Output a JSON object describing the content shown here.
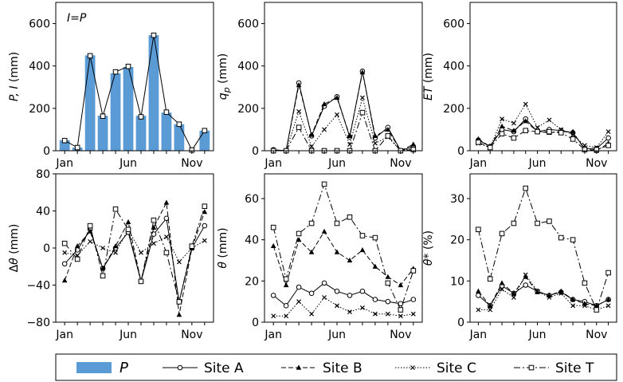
{
  "chart_data": [
    {
      "type": "bar",
      "title": "",
      "annotation": "I=P",
      "ylabel": "P, I (mm)",
      "xlabel": "",
      "months": [
        1,
        2,
        3,
        4,
        5,
        6,
        7,
        8,
        9,
        10,
        11,
        12
      ],
      "xtick_labels": [
        "Jan",
        "Jun",
        "Nov"
      ],
      "ylim": [
        0,
        700
      ],
      "yticks": [
        0,
        200,
        400,
        600
      ],
      "bars": {
        "name": "P",
        "values": [
          50,
          15,
          450,
          165,
          365,
          395,
          165,
          545,
          180,
          125,
          0,
          95
        ]
      },
      "series": [
        {
          "name": "I",
          "values": [
            48,
            15,
            448,
            163,
            372,
            398,
            160,
            545,
            182,
            125,
            3,
            95
          ]
        }
      ]
    },
    {
      "type": "line",
      "ylabel": "q_p (mm)",
      "months": [
        1,
        2,
        3,
        4,
        5,
        6,
        7,
        8,
        9,
        10,
        11,
        12
      ],
      "xtick_labels": [
        "Jan",
        "Jun",
        "Nov"
      ],
      "ylim": [
        0,
        700
      ],
      "yticks": [
        0,
        200,
        400,
        600
      ],
      "series": [
        {
          "name": "Site A",
          "values": [
            5,
            0,
            320,
            70,
            210,
            255,
            65,
            375,
            60,
            110,
            0,
            20
          ]
        },
        {
          "name": "Site B",
          "values": [
            3,
            0,
            310,
            75,
            220,
            250,
            70,
            370,
            70,
            100,
            0,
            30
          ]
        },
        {
          "name": "Site C",
          "values": [
            0,
            0,
            185,
            20,
            100,
            170,
            30,
            250,
            35,
            65,
            0,
            10
          ]
        },
        {
          "name": "Site T",
          "values": [
            0,
            0,
            110,
            0,
            0,
            0,
            0,
            180,
            0,
            70,
            0,
            5
          ]
        }
      ]
    },
    {
      "type": "line",
      "ylabel": "ET (mm)",
      "months": [
        1,
        2,
        3,
        4,
        5,
        6,
        7,
        8,
        9,
        10,
        11,
        12
      ],
      "xtick_labels": [
        "Jan",
        "Jun",
        "Nov"
      ],
      "ylim": [
        0,
        700
      ],
      "yticks": [
        0,
        200,
        400,
        600
      ],
      "series": [
        {
          "name": "Site A",
          "values": [
            50,
            20,
            100,
            90,
            150,
            90,
            100,
            95,
            85,
            10,
            10,
            60
          ]
        },
        {
          "name": "Site B",
          "values": [
            55,
            20,
            115,
            95,
            140,
            90,
            85,
            90,
            90,
            5,
            0,
            35
          ]
        },
        {
          "name": "Site C",
          "values": [
            35,
            15,
            150,
            130,
            220,
            110,
            145,
            100,
            75,
            25,
            15,
            90
          ]
        },
        {
          "name": "Site T",
          "values": [
            40,
            15,
            80,
            60,
            95,
            90,
            90,
            85,
            55,
            5,
            5,
            25
          ]
        }
      ]
    },
    {
      "type": "line",
      "ylabel": "Δθ (mm)",
      "months": [
        1,
        2,
        3,
        4,
        5,
        6,
        7,
        8,
        9,
        10,
        11,
        12
      ],
      "xtick_labels": [
        "Jan",
        "Jun",
        "Nov"
      ],
      "ylim": [
        -80,
        80
      ],
      "yticks": [
        -80,
        -40,
        0,
        40,
        80
      ],
      "series": [
        {
          "name": "Site A",
          "values": [
            -17,
            -2,
            20,
            -22,
            0,
            17,
            -36,
            15,
            32,
            -58,
            0,
            24
          ]
        },
        {
          "name": "Site B",
          "values": [
            -35,
            2,
            18,
            -22,
            2,
            28,
            -36,
            22,
            49,
            -72,
            0,
            39
          ]
        },
        {
          "name": "Site C",
          "values": [
            -5,
            -8,
            7,
            0,
            -5,
            20,
            -5,
            5,
            12,
            -15,
            0,
            8
          ]
        },
        {
          "name": "Site T",
          "values": [
            5,
            -12,
            24,
            -30,
            42,
            20,
            -36,
            30,
            -5,
            -58,
            2,
            45
          ]
        }
      ]
    },
    {
      "type": "line",
      "ylabel": "θ (mm)",
      "months": [
        1,
        2,
        3,
        4,
        5,
        6,
        7,
        8,
        9,
        10,
        11,
        12
      ],
      "xtick_labels": [
        "Jan",
        "Jun",
        "Nov"
      ],
      "ylim": [
        0,
        72
      ],
      "yticks": [
        0,
        20,
        40,
        60
      ],
      "series": [
        {
          "name": "Site A",
          "values": [
            13,
            8,
            17,
            14,
            19,
            15,
            13,
            15,
            11,
            10,
            9,
            11
          ]
        },
        {
          "name": "Site B",
          "values": [
            37,
            18,
            40,
            34,
            44,
            34,
            30,
            35,
            27,
            22,
            18,
            26
          ]
        },
        {
          "name": "Site C",
          "values": [
            3,
            3,
            10,
            4,
            12,
            8,
            5,
            7,
            4,
            4,
            3,
            4
          ]
        },
        {
          "name": "Site T",
          "values": [
            46,
            21,
            43,
            48,
            67,
            48,
            51,
            42,
            41,
            19,
            6,
            25
          ]
        }
      ]
    },
    {
      "type": "line",
      "ylabel": "θ* (%)",
      "months": [
        1,
        2,
        3,
        4,
        5,
        6,
        7,
        8,
        9,
        10,
        11,
        12
      ],
      "xtick_labels": [
        "Jan",
        "Jun",
        "Nov"
      ],
      "ylim": [
        0,
        36
      ],
      "yticks": [
        0,
        10,
        20,
        30
      ],
      "series": [
        {
          "name": "Site A",
          "values": [
            6.5,
            4,
            8.8,
            7,
            9,
            7.5,
            6.5,
            7.3,
            5.5,
            5,
            4,
            5.5
          ]
        },
        {
          "name": "Site B",
          "values": [
            7.5,
            4,
            9.5,
            7,
            11,
            7.3,
            6.5,
            7.5,
            5.5,
            4.5,
            4,
            5.5
          ]
        },
        {
          "name": "Site C",
          "values": [
            3,
            3,
            8,
            6,
            11.5,
            7.5,
            6,
            7,
            4,
            4,
            3,
            4
          ]
        },
        {
          "name": "Site T",
          "values": [
            22.5,
            10.5,
            21.5,
            24,
            32.5,
            24,
            24.5,
            20.5,
            20,
            9.5,
            3,
            12
          ]
        }
      ]
    }
  ],
  "legend": {
    "entries": [
      {
        "key": "bar",
        "label": "P"
      },
      {
        "key": "a",
        "label": "Site A"
      },
      {
        "key": "b",
        "label": "Site B"
      },
      {
        "key": "c",
        "label": "Site C"
      },
      {
        "key": "t",
        "label": "Site T"
      }
    ]
  },
  "colors": {
    "bar": "#5b9bd5",
    "line": "#000000"
  }
}
